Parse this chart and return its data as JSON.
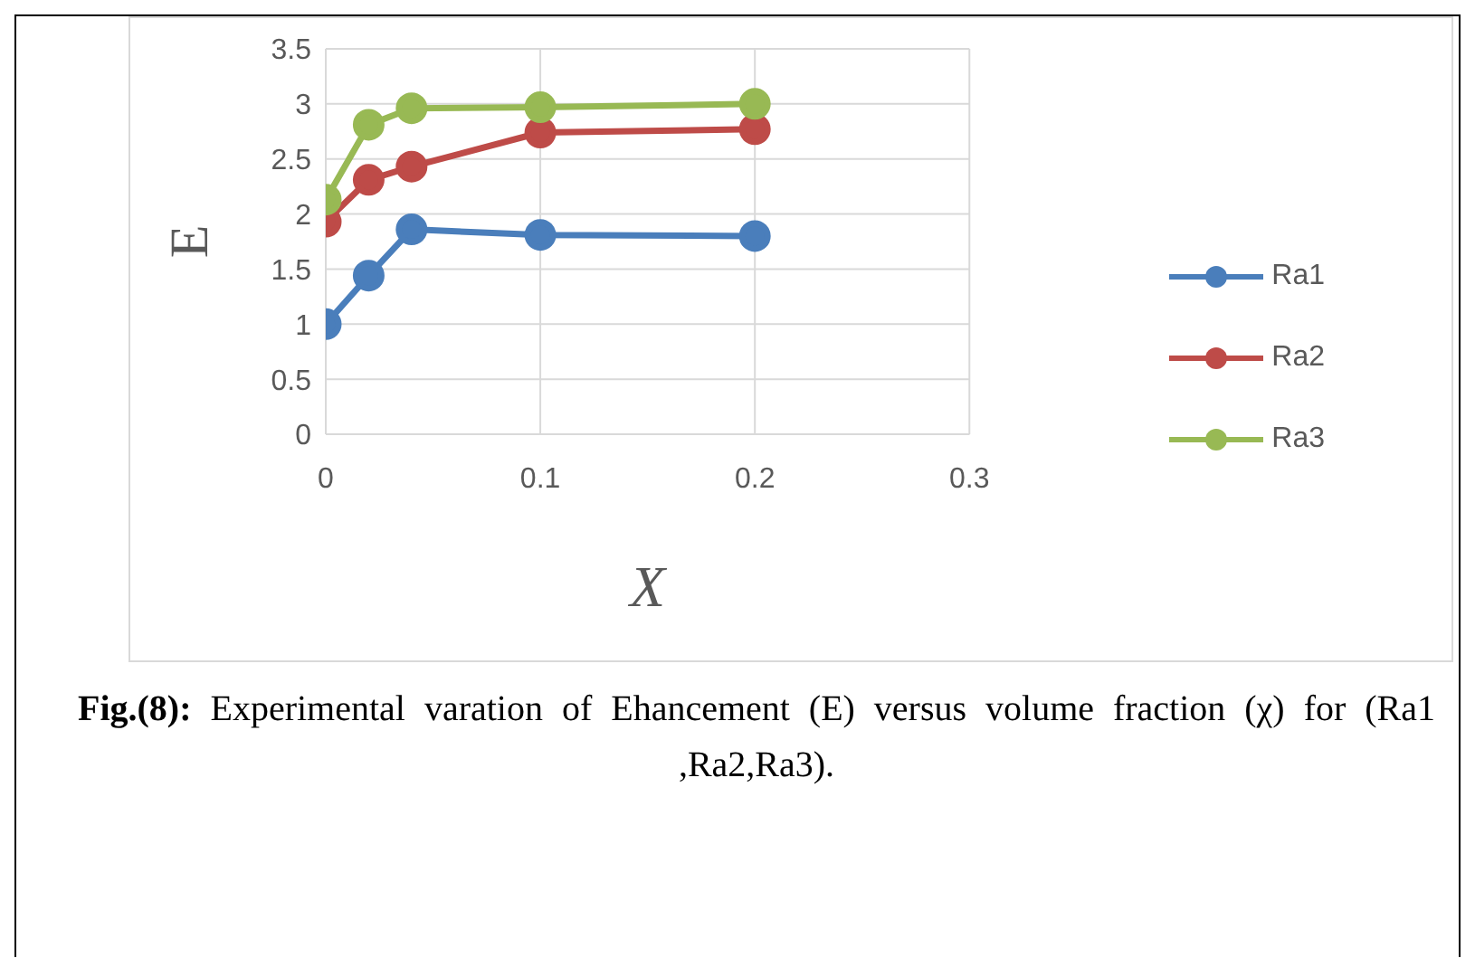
{
  "chart_data": {
    "type": "line",
    "xlabel": "X",
    "ylabel": "E",
    "xlim": [
      0,
      0.3
    ],
    "xticks": [
      0,
      0.1,
      0.2,
      0.3
    ],
    "ylim": [
      0,
      3.5
    ],
    "yticks": [
      0,
      0.5,
      1,
      1.5,
      2,
      2.5,
      3,
      3.5
    ],
    "grid": true,
    "legend": "right",
    "marker": "circle",
    "line_style": "solid",
    "series": [
      {
        "name": "Ra1",
        "color": "#4a7ebb",
        "x": [
          0,
          0.02,
          0.04,
          0.1,
          0.2
        ],
        "values": [
          1.0,
          1.44,
          1.86,
          1.81,
          1.8
        ]
      },
      {
        "name": "Ra2",
        "color": "#be4b48",
        "x": [
          0,
          0.02,
          0.04,
          0.1,
          0.2
        ],
        "values": [
          1.93,
          2.31,
          2.43,
          2.74,
          2.77
        ]
      },
      {
        "name": "Ra3",
        "color": "#98b954",
        "x": [
          0,
          0.02,
          0.04,
          0.1,
          0.2
        ],
        "values": [
          2.13,
          2.81,
          2.96,
          2.97,
          3.0
        ]
      }
    ],
    "annotations": [
      "Fig.(8):",
      "Experimental  varation of Ehancement (E) versus  volume fraction (χ)  for (Ra1 ,Ra2,Ra3)."
    ]
  }
}
